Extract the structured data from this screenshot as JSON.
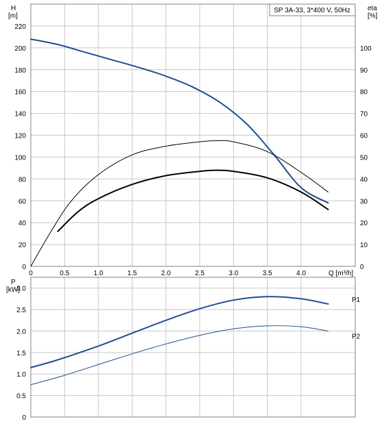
{
  "chart_data": [
    {
      "type": "line",
      "title": "SP 3A-33, 3*400 V, 50Hz",
      "xlabel": "Q [m³/h]",
      "ylabel": "H",
      "ylabel_unit": "[m]",
      "y2label": "eta",
      "y2label_unit": "[%]",
      "xlim": [
        0,
        4.8
      ],
      "ylim": [
        0,
        240
      ],
      "y2lim": [
        0,
        120
      ],
      "x_ticks": [
        "0",
        "0.5",
        "1.0",
        "1.5",
        "2.0",
        "2.5",
        "3.0",
        "3.5",
        "4.0"
      ],
      "y_ticks": [
        "0",
        "20",
        "40",
        "60",
        "80",
        "100",
        "120",
        "140",
        "160",
        "180",
        "200",
        "220"
      ],
      "y2_ticks": [
        "0",
        "10",
        "20",
        "30",
        "40",
        "50",
        "60",
        "70",
        "80",
        "90",
        "100"
      ],
      "grid": true,
      "series": [
        {
          "color": "#1f4e8c",
          "axis": "left",
          "x": [
            0,
            0.4,
            0.8,
            1.2,
            1.6,
            2.0,
            2.4,
            2.8,
            3.2,
            3.6,
            4.0,
            4.4
          ],
          "y": [
            208,
            203,
            196,
            189,
            182,
            174,
            164,
            150,
            130,
            102,
            72,
            58
          ]
        },
        {
          "color": "#000000",
          "axis": "right",
          "x": [
            0,
            0.3,
            0.6,
            1.0,
            1.5,
            2.0,
            2.5,
            2.75,
            3.0,
            3.5,
            4.0,
            4.4
          ],
          "y": [
            0,
            16,
            30,
            42,
            51,
            55,
            57,
            57.5,
            57,
            52.5,
            43,
            34
          ]
        },
        {
          "color": "#000000",
          "axis": "right",
          "x": [
            0.4,
            0.7,
            1.0,
            1.5,
            2.0,
            2.5,
            2.75,
            3.0,
            3.5,
            4.0,
            4.4
          ],
          "y": [
            16,
            25,
            31,
            37.5,
            41.5,
            43.5,
            44,
            43.5,
            40.5,
            34,
            26
          ]
        }
      ]
    },
    {
      "type": "line",
      "ylabel": "P",
      "ylabel_unit": "[kW]",
      "xlim": [
        0,
        4.8
      ],
      "ylim": [
        0,
        3.25
      ],
      "y_ticks": [
        "0",
        "0.5",
        "1.0",
        "1.5",
        "2.0",
        "2.5",
        "3.0"
      ],
      "grid": true,
      "series": [
        {
          "name": "P1",
          "color": "#1f4e8c",
          "x": [
            0,
            0.4,
            1.0,
            1.5,
            2.0,
            2.5,
            3.0,
            3.5,
            4.0,
            4.4
          ],
          "y": [
            1.15,
            1.33,
            1.65,
            1.95,
            2.25,
            2.52,
            2.72,
            2.8,
            2.75,
            2.63
          ]
        },
        {
          "name": "P2",
          "color": "#1f4e8c",
          "x": [
            0,
            0.5,
            1.0,
            1.5,
            2.0,
            2.5,
            3.0,
            3.5,
            4.0,
            4.4
          ],
          "y": [
            0.75,
            0.97,
            1.22,
            1.47,
            1.7,
            1.9,
            2.05,
            2.12,
            2.1,
            2.0
          ]
        }
      ]
    }
  ]
}
